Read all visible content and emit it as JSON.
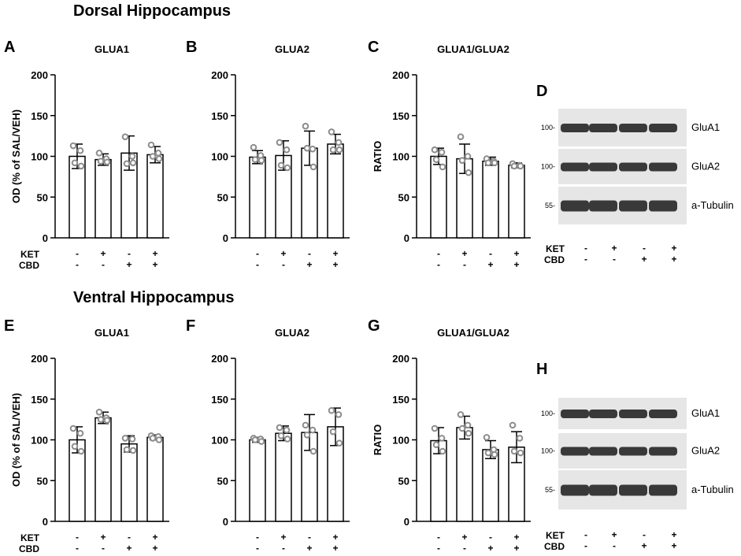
{
  "sections": [
    {
      "title": "Dorsal Hippocampus"
    },
    {
      "title": "Ventral Hippocampus"
    }
  ],
  "treatment_rows": [
    {
      "label": "KET",
      "signs": [
        "-",
        "+",
        "-",
        "+"
      ]
    },
    {
      "label": "CBD",
      "signs": [
        "-",
        "-",
        "+",
        "+"
      ]
    }
  ],
  "chart_data": [
    {
      "panel": "A",
      "type": "bar",
      "title": "GLUA1",
      "ylabel": "OD (% of SAL/VEH)",
      "ylim": [
        0,
        200
      ],
      "yticks": [
        0,
        50,
        100,
        150,
        200
      ],
      "categories": [
        "SAL/VEH",
        "KET/VEH",
        "SAL/CBD",
        "KET/CBD"
      ],
      "values": [
        100,
        96,
        104,
        102
      ],
      "error": [
        15,
        7,
        21,
        10
      ],
      "points": [
        [
          113,
          107,
          92,
          88
        ],
        [
          104,
          97,
          94,
          93
        ],
        [
          124,
          100,
          91,
          92
        ],
        [
          114,
          104,
          100,
          97
        ]
      ]
    },
    {
      "panel": "B",
      "type": "bar",
      "title": "GLUA2",
      "ylabel": "",
      "ylim": [
        0,
        200
      ],
      "yticks": [
        0,
        50,
        100,
        150,
        200
      ],
      "categories": [
        "SAL/VEH",
        "KET/VEH",
        "SAL/CBD",
        "KET/CBD"
      ],
      "values": [
        99,
        101,
        110,
        115
      ],
      "error": [
        8,
        18,
        21,
        12
      ],
      "points": [
        [
          111,
          101,
          96,
          95
        ],
        [
          117,
          108,
          89,
          86
        ],
        [
          137,
          109,
          110,
          87
        ],
        [
          130,
          117,
          108,
          108
        ]
      ]
    },
    {
      "panel": "C",
      "type": "bar",
      "title": "GLUA1/GLUA2",
      "ylabel": "RATIO",
      "ylim": [
        0,
        200
      ],
      "yticks": [
        0,
        50,
        100,
        150,
        200
      ],
      "categories": [
        "SAL/VEH",
        "KET/VEH",
        "SAL/CBD",
        "KET/CBD"
      ],
      "values": [
        100,
        97,
        94,
        89
      ],
      "error": [
        10,
        18,
        5,
        3
      ],
      "points": [
        [
          108,
          105,
          96,
          87
        ],
        [
          124,
          100,
          95,
          80
        ],
        [
          97,
          94,
          92,
          92
        ],
        [
          91,
          89,
          88,
          88
        ]
      ]
    },
    {
      "panel": "E",
      "type": "bar",
      "title": "GLUA1",
      "ylabel": "OD (% of SAL/VEH)",
      "ylim": [
        0,
        200
      ],
      "yticks": [
        0,
        50,
        100,
        150,
        200
      ],
      "categories": [
        "SAL/VEH",
        "KET/VEH",
        "SAL/CBD",
        "KET/CBD"
      ],
      "values": [
        100,
        127,
        95,
        103
      ],
      "error": [
        16,
        7,
        10,
        3
      ],
      "points": [
        [
          114,
          108,
          92,
          86
        ],
        [
          134,
          127,
          125,
          124
        ],
        [
          102,
          101,
          88,
          87
        ],
        [
          105,
          104,
          102,
          100
        ]
      ]
    },
    {
      "panel": "F",
      "type": "bar",
      "title": "GLUA2",
      "ylabel": "",
      "ylim": [
        0,
        200
      ],
      "yticks": [
        0,
        50,
        100,
        150,
        200
      ],
      "categories": [
        "SAL/VEH",
        "KET/VEH",
        "SAL/CBD",
        "KET/CBD"
      ],
      "values": [
        100,
        108,
        109,
        116
      ],
      "error": [
        3,
        9,
        22,
        23
      ],
      "points": [
        [
          102,
          101,
          100,
          98
        ],
        [
          115,
          112,
          105,
          101
        ],
        [
          118,
          112,
          106,
          86
        ],
        [
          136,
          131,
          110,
          96
        ]
      ]
    },
    {
      "panel": "G",
      "type": "bar",
      "title": "GLUA1/GLUA2",
      "ylabel": "RATIO",
      "ylim": [
        0,
        200
      ],
      "yticks": [
        0,
        50,
        100,
        150,
        200
      ],
      "categories": [
        "SAL/VEH",
        "KET/VEH",
        "SAL/CBD",
        "KET/CBD"
      ],
      "values": [
        99,
        115,
        88,
        91
      ],
      "error": [
        16,
        14,
        11,
        19
      ],
      "points": [
        [
          114,
          102,
          94,
          86
        ],
        [
          131,
          118,
          114,
          108
        ],
        [
          103,
          88,
          84,
          82
        ],
        [
          118,
          102,
          86,
          84
        ]
      ]
    }
  ],
  "blots": [
    {
      "panel": "D",
      "rows": [
        {
          "marker": "100-",
          "label": "GluA1"
        },
        {
          "marker": "100-",
          "label": "GluA2"
        },
        {
          "marker": "55-",
          "label": "a-Tubulin"
        }
      ]
    },
    {
      "panel": "H",
      "rows": [
        {
          "marker": "100-",
          "label": "GluA1"
        },
        {
          "marker": "100-",
          "label": "GluA2"
        },
        {
          "marker": "55-",
          "label": "a-Tubulin"
        }
      ]
    }
  ],
  "colors": {
    "bar_fill": "#ffffff",
    "bar_stroke": "#000000",
    "point": "#8c8c8c",
    "blot_bg": "#e6e6e6",
    "band": "#2a2a2a"
  }
}
